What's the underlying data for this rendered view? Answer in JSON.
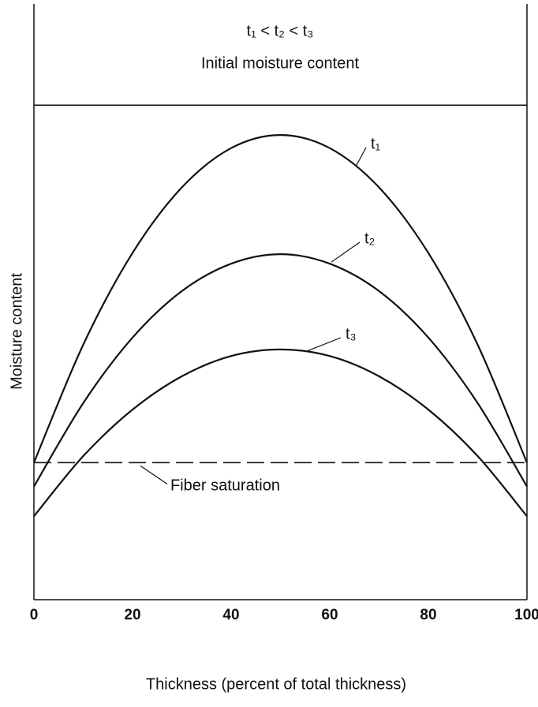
{
  "chart_data": {
    "type": "line",
    "title": "t₁ < t₂ < t₃",
    "x_label": "Thickness (percent of total thickness)",
    "y_label": "Moisture content",
    "x": [
      0,
      10,
      20,
      30,
      40,
      50,
      60,
      70,
      80,
      90,
      100
    ],
    "xlim": [
      0,
      100
    ],
    "xticks": [
      0,
      20,
      40,
      60,
      80,
      100
    ],
    "ylim": [
      0,
      100
    ],
    "grid": false,
    "series": [
      {
        "name": "t₁",
        "color": "#111111",
        "values": [
          23,
          42.8,
          58.2,
          69.2,
          75.8,
          78,
          75.8,
          69.2,
          58.2,
          42.8,
          23
        ]
      },
      {
        "name": "t₂",
        "color": "#111111",
        "values": [
          19,
          33.0,
          44.0,
          51.8,
          56.4,
          58,
          56.4,
          51.8,
          44.0,
          33.0,
          19
        ]
      },
      {
        "name": "t₃",
        "color": "#111111",
        "values": [
          14,
          24.1,
          31.9,
          37.5,
          40.9,
          42,
          40.9,
          37.5,
          31.9,
          24.1,
          14
        ]
      }
    ],
    "reference_lines": [
      {
        "label": "Initial moisture content",
        "value": 83,
        "style": "solid"
      },
      {
        "label": "Fiber saturation",
        "value": 23,
        "style": "dashed"
      }
    ]
  }
}
